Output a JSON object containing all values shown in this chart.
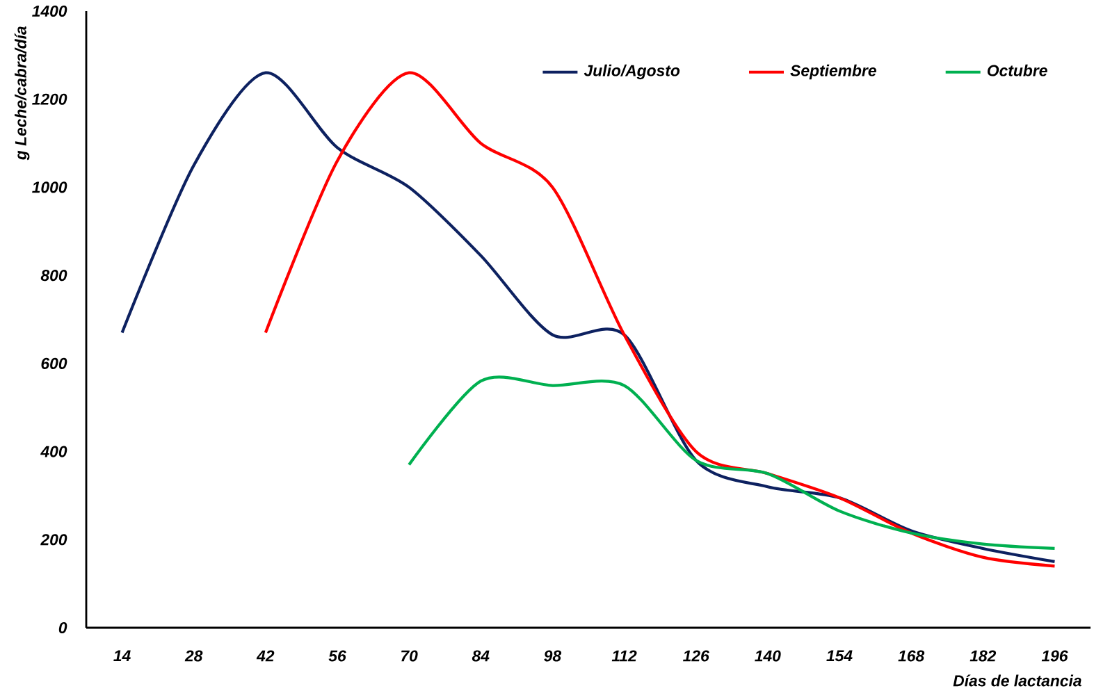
{
  "chart_data": {
    "type": "line",
    "xlabel": "Días de lactancia",
    "ylabel": "g Leche/cabra/día",
    "categories": [
      "14",
      "28",
      "42",
      "56",
      "70",
      "84",
      "98",
      "112",
      "126",
      "140",
      "154",
      "168",
      "182",
      "196"
    ],
    "series": [
      {
        "name": "Julio/Agosto",
        "color": "#0d2160",
        "values": [
          670,
          1050,
          1260,
          1090,
          1000,
          845,
          665,
          665,
          380,
          320,
          295,
          220,
          180,
          150
        ]
      },
      {
        "name": "Septiembre",
        "color": "#ff0000",
        "values": [
          null,
          null,
          670,
          1060,
          1260,
          1100,
          1000,
          665,
          400,
          350,
          295,
          215,
          160,
          140
        ]
      },
      {
        "name": "Octubre",
        "color": "#00b050",
        "values": [
          null,
          null,
          null,
          null,
          370,
          560,
          550,
          550,
          380,
          350,
          265,
          215,
          190,
          180
        ]
      }
    ],
    "ylim": [
      0,
      1400
    ],
    "yticks": [
      0,
      200,
      400,
      600,
      800,
      1000,
      1200,
      1400
    ],
    "legend": "top right",
    "grid": false,
    "marker": "none",
    "line_style": "solid"
  }
}
